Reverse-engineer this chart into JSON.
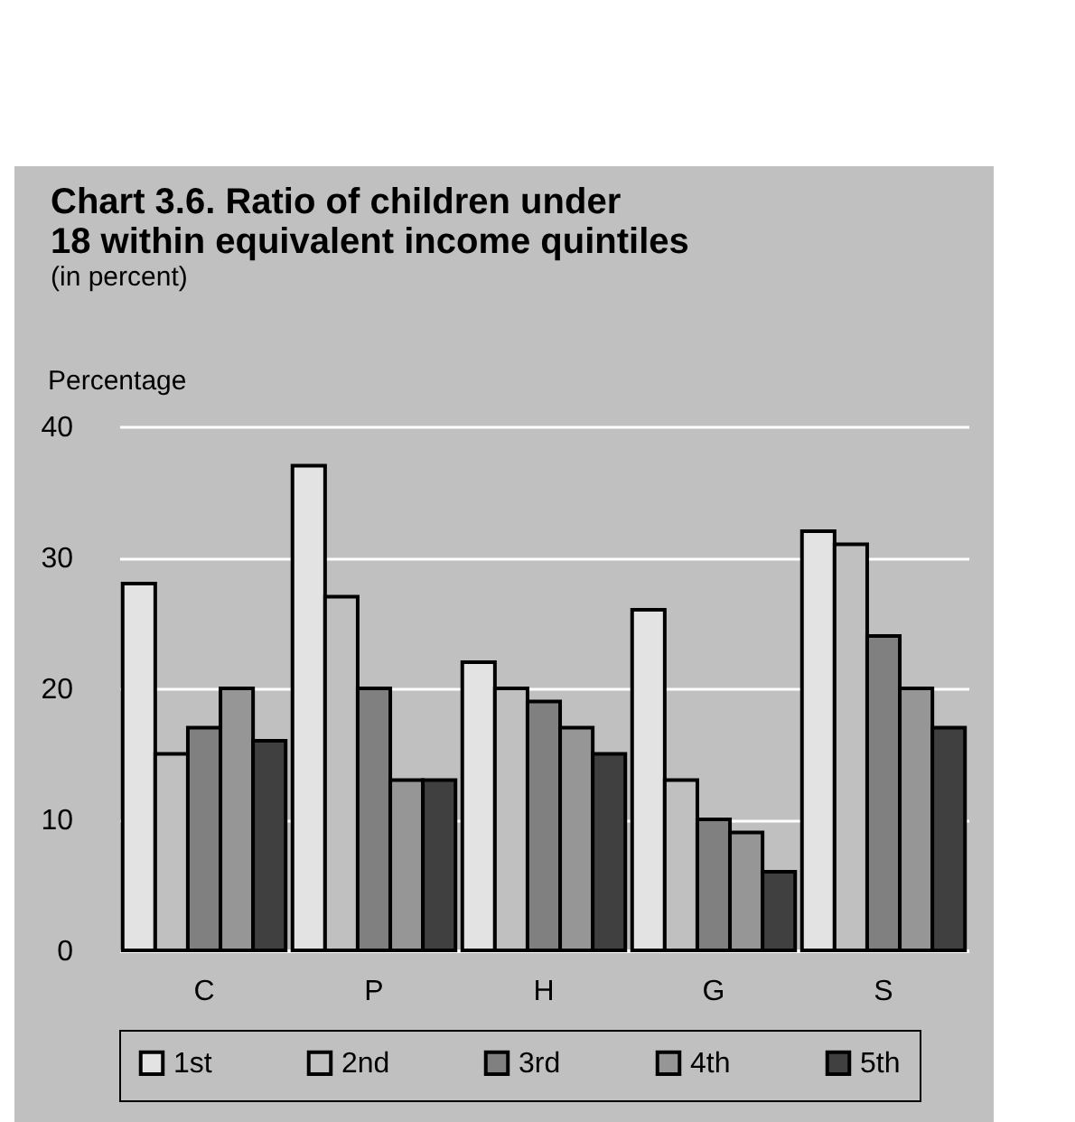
{
  "chart_data": {
    "type": "bar",
    "title": "Chart 3.6.   Ratio of children under 18 within equivalent income quintiles",
    "subtitle": "(in percent)",
    "ylabel": "Percentage",
    "categories": [
      "C",
      "P",
      "H",
      "G",
      "S"
    ],
    "series": [
      {
        "name": "1st",
        "color": "#e3e3e3",
        "values": [
          28,
          37,
          22,
          26,
          32
        ]
      },
      {
        "name": "2nd",
        "color": "#c0c0c0",
        "values": [
          15,
          27,
          20,
          13,
          31
        ]
      },
      {
        "name": "3rd",
        "color": "#808080",
        "values": [
          17,
          20,
          19,
          10,
          24
        ]
      },
      {
        "name": "4th",
        "color": "#969696",
        "values": [
          20,
          13,
          17,
          9,
          20
        ]
      },
      {
        "name": "5th",
        "color": "#404040",
        "values": [
          16,
          13,
          15,
          6,
          17
        ]
      }
    ],
    "ylim": [
      0,
      40
    ],
    "yticks": [
      0,
      10,
      20,
      30,
      40
    ],
    "grid": "y",
    "legend": "bottom"
  }
}
